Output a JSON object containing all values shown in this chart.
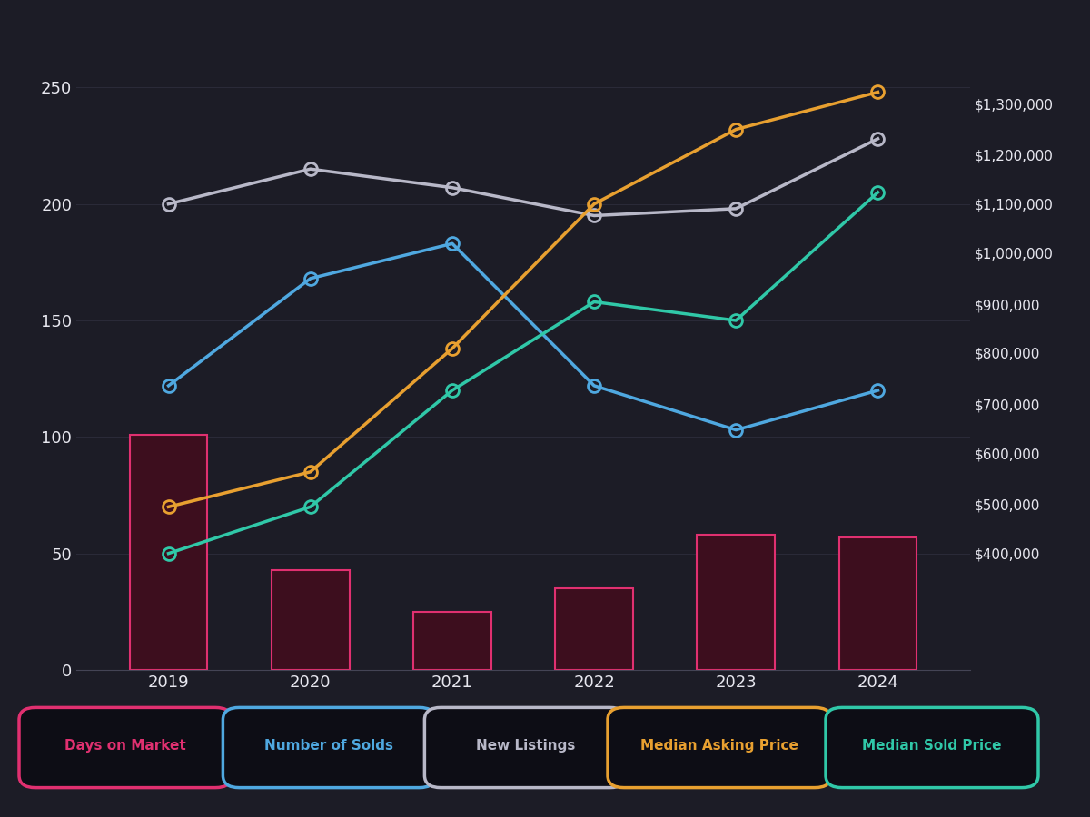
{
  "years": [
    2019,
    2020,
    2021,
    2022,
    2023,
    2024
  ],
  "days_on_market": [
    101,
    43,
    25,
    35,
    58,
    57
  ],
  "number_of_solds": [
    122,
    168,
    183,
    122,
    103,
    120
  ],
  "new_listings": [
    200,
    215,
    207,
    195,
    198,
    228
  ],
  "median_asking_left": [
    70,
    85,
    138,
    200,
    232,
    248
  ],
  "median_sold_left": [
    50,
    70,
    120,
    158,
    150,
    205
  ],
  "bar_color_face": "#3d0e1e",
  "bar_color_edge": "#e03070",
  "line_color_solds": "#4fa8e0",
  "line_color_new_listings": "#b8b8c8",
  "line_color_asking": "#e8a030",
  "line_color_sold_price": "#30c8a8",
  "background_color": "#1c1c26",
  "text_color": "#e8e8f0",
  "left_ylim": [
    0,
    270
  ],
  "left_yticks": [
    0,
    50,
    100,
    150,
    200,
    250
  ],
  "right_ylim": [
    0,
    270
  ],
  "right_ytick_positions": [
    50,
    71,
    93,
    114,
    136,
    157,
    179,
    200,
    221,
    243
  ],
  "right_ytick_labels": [
    "$400,000",
    "$500,000",
    "$600,000",
    "$700,000",
    "$800,000",
    "$900,000",
    "$1,000,000",
    "$1,100,000",
    "$1,200,000",
    "$1,300,000"
  ],
  "legend_labels": [
    "Days on Market",
    "Number of Solds",
    "New Listings",
    "Median Asking Price",
    "Median Sold Price"
  ],
  "legend_colors": [
    "#e03070",
    "#4fa8e0",
    "#b8b8c8",
    "#e8a030",
    "#30c8a8"
  ]
}
